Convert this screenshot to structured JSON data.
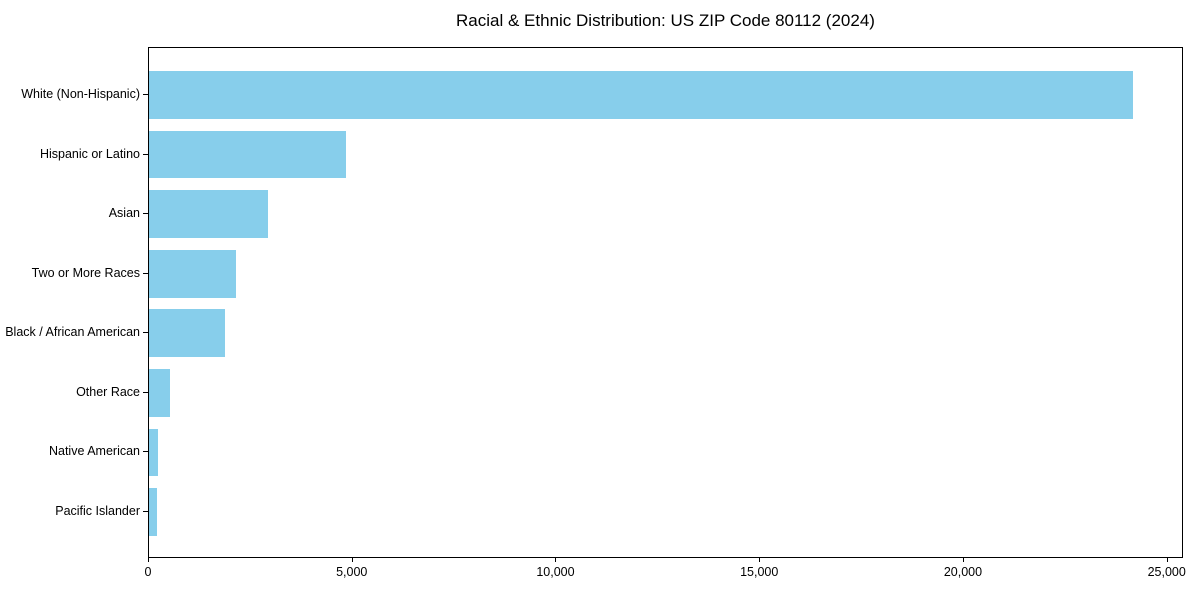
{
  "chart_data": {
    "type": "bar",
    "orientation": "horizontal",
    "title": "Racial & Ethnic Distribution: US ZIP Code 80112 (2024)",
    "categories": [
      "White (Non-Hispanic)",
      "Hispanic or Latino",
      "Asian",
      "Two or More Races",
      "Black / African American",
      "Other Race",
      "Native American",
      "Pacific Islander"
    ],
    "values": [
      24200,
      4850,
      2920,
      2130,
      1860,
      515,
      220,
      190
    ],
    "xlabel": "",
    "ylabel": "",
    "xlim": [
      0,
      25400
    ],
    "xticks": [
      0,
      5000,
      10000,
      15000,
      20000,
      25000
    ],
    "xtick_labels": [
      "0",
      "5,000",
      "10,000",
      "15,000",
      "20,000",
      "25,000"
    ],
    "bar_color": "#87CEEB",
    "spine_color": "#000000",
    "grid": false,
    "legend": false
  }
}
